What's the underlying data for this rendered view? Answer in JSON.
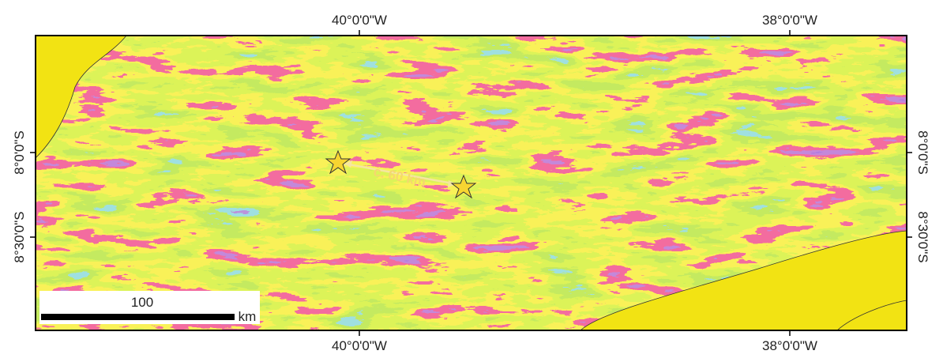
{
  "axes": {
    "top": [
      "40°0'0\"W",
      "38°0'0\"W"
    ],
    "bottom": [
      "40°0'0\"W",
      "38°0'0\"W"
    ],
    "left": [
      "8°0'0\"S",
      "8°30'0\"S"
    ],
    "right": [
      "8°0'0\"S",
      "8°30'0\"S"
    ]
  },
  "annotation": "c. 60 km",
  "scale_bar": {
    "length": "100",
    "unit": "km"
  }
}
